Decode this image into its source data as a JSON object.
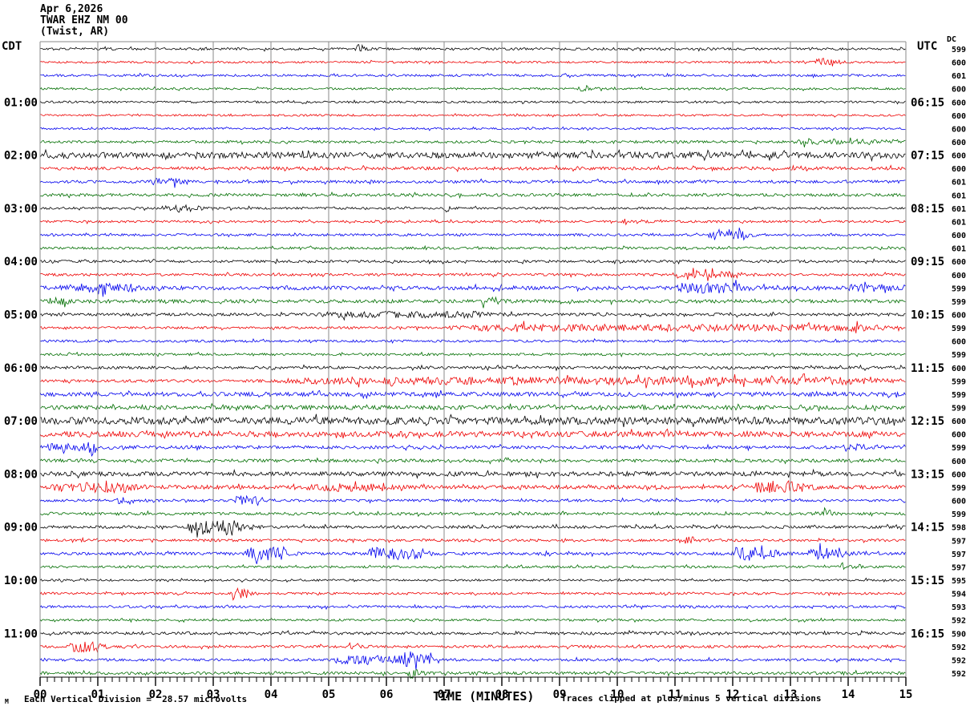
{
  "header": {
    "date": "Apr 6,2026",
    "station": "TWAR EHZ NM 00",
    "location": "(Twist, AR)"
  },
  "axes": {
    "left_tz": "CDT",
    "right_tz": "UTC",
    "dc_header": "DC"
  },
  "footer": {
    "corner_mark": "M",
    "vertical_division": "Each Vertical Division =  28.57 microvolts",
    "x_axis_title": "TIME (MINUTES)",
    "clip_note": "Traces clipped at plus/minus 5 vertical divisions"
  },
  "chart_data": {
    "type": "line",
    "subtype": "helicorder-seismogram",
    "title": "TWAR EHZ NM 00 (Twist, AR) Apr 6,2026",
    "xlabel": "TIME (MINUTES)",
    "x_range_minutes": [
      0,
      15
    ],
    "x_tick_labels": [
      "00",
      "01",
      "02",
      "03",
      "04",
      "05",
      "06",
      "07",
      "08",
      "09",
      "10",
      "11",
      "12",
      "13",
      "14",
      "15"
    ],
    "minor_ticks_per_minute": 8,
    "grid": true,
    "grid_color": "#8a8a8a",
    "palette": [
      "#000000",
      "#ee0000",
      "#0000ee",
      "#006e00"
    ],
    "palette_names": [
      "black",
      "red",
      "blue",
      "green"
    ],
    "rows_note": "48 quarter-hour trace rows, 00:00-11:45 CDT / 05:15-17:00 UTC; c=palette index, amp=background noise half-amplitude px, ev=[startMinute,durationMinutes,extraAmplitude] bursts",
    "rows": [
      {
        "cdt": "",
        "utc": "",
        "dc": 599,
        "c": 0,
        "amp": 1.5,
        "ev": [
          [
            5.45,
            0.15,
            5
          ]
        ]
      },
      {
        "cdt": "",
        "utc": "",
        "dc": 600,
        "c": 1,
        "amp": 1.3,
        "ev": [
          [
            13.35,
            0.4,
            4
          ]
        ]
      },
      {
        "cdt": "",
        "utc": "",
        "dc": 601,
        "c": 2,
        "amp": 1.5,
        "ev": []
      },
      {
        "cdt": "",
        "utc": "",
        "dc": 600,
        "c": 3,
        "amp": 1.3,
        "ev": [
          [
            9.3,
            0.2,
            3
          ]
        ]
      },
      {
        "cdt": "01:00",
        "utc": "06:15",
        "dc": 600,
        "c": 0,
        "amp": 1.3,
        "ev": []
      },
      {
        "cdt": "",
        "utc": "",
        "dc": 600,
        "c": 1,
        "amp": 1.2,
        "ev": []
      },
      {
        "cdt": "",
        "utc": "",
        "dc": 600,
        "c": 2,
        "amp": 1.3,
        "ev": []
      },
      {
        "cdt": "",
        "utc": "",
        "dc": 600,
        "c": 3,
        "amp": 1.6,
        "ev": [
          [
            13.0,
            2.0,
            2
          ]
        ]
      },
      {
        "cdt": "02:00",
        "utc": "07:15",
        "dc": 600,
        "c": 0,
        "amp": 3.8,
        "ev": []
      },
      {
        "cdt": "",
        "utc": "",
        "dc": 600,
        "c": 1,
        "amp": 2.0,
        "ev": []
      },
      {
        "cdt": "",
        "utc": "",
        "dc": 601,
        "c": 2,
        "amp": 1.8,
        "ev": [
          [
            1.9,
            0.6,
            2.5
          ]
        ]
      },
      {
        "cdt": "",
        "utc": "",
        "dc": 601,
        "c": 3,
        "amp": 1.8,
        "ev": []
      },
      {
        "cdt": "03:00",
        "utc": "08:15",
        "dc": 601,
        "c": 0,
        "amp": 1.4,
        "ev": [
          [
            2.1,
            0.7,
            3
          ],
          [
            6.95,
            0.15,
            3.5
          ]
        ]
      },
      {
        "cdt": "",
        "utc": "",
        "dc": 601,
        "c": 1,
        "amp": 1.4,
        "ev": [
          [
            10.1,
            0.35,
            2.5
          ]
        ]
      },
      {
        "cdt": "",
        "utc": "",
        "dc": 600,
        "c": 2,
        "amp": 1.5,
        "ev": [
          [
            11.55,
            0.75,
            6
          ]
        ]
      },
      {
        "cdt": "",
        "utc": "",
        "dc": 601,
        "c": 3,
        "amp": 1.5,
        "ev": []
      },
      {
        "cdt": "04:00",
        "utc": "09:15",
        "dc": 600,
        "c": 0,
        "amp": 1.6,
        "ev": []
      },
      {
        "cdt": "",
        "utc": "",
        "dc": 600,
        "c": 1,
        "amp": 1.6,
        "ev": [
          [
            10.9,
            1.3,
            3
          ]
        ]
      },
      {
        "cdt": "",
        "utc": "",
        "dc": 599,
        "c": 2,
        "amp": 2.4,
        "ev": [
          [
            0.6,
            1.1,
            3.5
          ],
          [
            11.0,
            1.3,
            4.5
          ],
          [
            13.8,
            1.0,
            2.5
          ]
        ]
      },
      {
        "cdt": "",
        "utc": "",
        "dc": 599,
        "c": 3,
        "amp": 2.2,
        "ev": [
          [
            0.15,
            0.35,
            3
          ],
          [
            7.6,
            0.4,
            3
          ]
        ]
      },
      {
        "cdt": "05:00",
        "utc": "10:15",
        "dc": 600,
        "c": 0,
        "amp": 1.8,
        "ev": [
          [
            4.7,
            3.2,
            2.5
          ]
        ]
      },
      {
        "cdt": "",
        "utc": "",
        "dc": 599,
        "c": 1,
        "amp": 1.5,
        "ev": [
          [
            7.0,
            8.0,
            3
          ]
        ]
      },
      {
        "cdt": "",
        "utc": "",
        "dc": 600,
        "c": 2,
        "amp": 1.5,
        "ev": []
      },
      {
        "cdt": "",
        "utc": "",
        "dc": 599,
        "c": 3,
        "amp": 1.5,
        "ev": []
      },
      {
        "cdt": "06:00",
        "utc": "11:15",
        "dc": 600,
        "c": 0,
        "amp": 1.8,
        "ev": []
      },
      {
        "cdt": "",
        "utc": "",
        "dc": 599,
        "c": 1,
        "amp": 1.8,
        "ev": [
          [
            4.0,
            11.0,
            3.2
          ]
        ]
      },
      {
        "cdt": "",
        "utc": "",
        "dc": 599,
        "c": 2,
        "amp": 2.6,
        "ev": []
      },
      {
        "cdt": "",
        "utc": "",
        "dc": 599,
        "c": 3,
        "amp": 2.6,
        "ev": []
      },
      {
        "cdt": "07:00",
        "utc": "12:15",
        "dc": 600,
        "c": 0,
        "amp": 4.5,
        "ev": []
      },
      {
        "cdt": "",
        "utc": "",
        "dc": 600,
        "c": 1,
        "amp": 3.4,
        "ev": []
      },
      {
        "cdt": "",
        "utc": "",
        "dc": 599,
        "c": 2,
        "amp": 2.0,
        "ev": [
          [
            0.0,
            1.0,
            3
          ],
          [
            0.82,
            0.18,
            6
          ],
          [
            13.9,
            0.4,
            3
          ]
        ]
      },
      {
        "cdt": "",
        "utc": "",
        "dc": 600,
        "c": 3,
        "amp": 2.0,
        "ev": []
      },
      {
        "cdt": "08:00",
        "utc": "13:15",
        "dc": 600,
        "c": 0,
        "amp": 2.8,
        "ev": []
      },
      {
        "cdt": "",
        "utc": "",
        "dc": 599,
        "c": 1,
        "amp": 2.4,
        "ev": [
          [
            0.2,
            1.5,
            4.5
          ],
          [
            4.6,
            1.5,
            3
          ],
          [
            12.35,
            0.9,
            6
          ]
        ]
      },
      {
        "cdt": "",
        "utc": "",
        "dc": 600,
        "c": 2,
        "amp": 1.6,
        "ev": [
          [
            1.3,
            0.35,
            3
          ],
          [
            3.35,
            0.55,
            5
          ]
        ]
      },
      {
        "cdt": "",
        "utc": "",
        "dc": 599,
        "c": 3,
        "amp": 1.8,
        "ev": [
          [
            13.4,
            0.3,
            3.5
          ]
        ]
      },
      {
        "cdt": "09:00",
        "utc": "14:15",
        "dc": 598,
        "c": 0,
        "amp": 1.8,
        "ev": [
          [
            2.55,
            1.0,
            8
          ]
        ]
      },
      {
        "cdt": "",
        "utc": "",
        "dc": 597,
        "c": 1,
        "amp": 1.6,
        "ev": [
          [
            11.15,
            0.2,
            4
          ]
        ]
      },
      {
        "cdt": "",
        "utc": "",
        "dc": 597,
        "c": 2,
        "amp": 1.8,
        "ev": [
          [
            3.55,
            0.75,
            7
          ],
          [
            5.65,
            1.05,
            6
          ],
          [
            11.95,
            0.85,
            7
          ],
          [
            13.3,
            0.65,
            6
          ]
        ]
      },
      {
        "cdt": "",
        "utc": "",
        "dc": 597,
        "c": 3,
        "amp": 1.5,
        "ev": [
          [
            13.85,
            0.15,
            4
          ]
        ]
      },
      {
        "cdt": "10:00",
        "utc": "15:15",
        "dc": 595,
        "c": 0,
        "amp": 1.3,
        "ev": []
      },
      {
        "cdt": "",
        "utc": "",
        "dc": 594,
        "c": 1,
        "amp": 1.4,
        "ev": [
          [
            3.3,
            0.35,
            5
          ]
        ]
      },
      {
        "cdt": "",
        "utc": "",
        "dc": 593,
        "c": 2,
        "amp": 1.5,
        "ev": []
      },
      {
        "cdt": "",
        "utc": "",
        "dc": 592,
        "c": 3,
        "amp": 1.4,
        "ev": []
      },
      {
        "cdt": "11:00",
        "utc": "16:15",
        "dc": 590,
        "c": 0,
        "amp": 1.8,
        "ev": []
      },
      {
        "cdt": "",
        "utc": "",
        "dc": 592,
        "c": 1,
        "amp": 1.6,
        "ev": [
          [
            0.5,
            0.6,
            5
          ],
          [
            5.3,
            0.2,
            4
          ]
        ]
      },
      {
        "cdt": "",
        "utc": "",
        "dc": 592,
        "c": 2,
        "amp": 1.6,
        "ev": [
          [
            5.0,
            1.9,
            4
          ],
          [
            6.28,
            0.28,
            9
          ]
        ]
      },
      {
        "cdt": "",
        "utc": "",
        "dc": 592,
        "c": 3,
        "amp": 1.8,
        "ev": [
          [
            6.4,
            0.15,
            6
          ]
        ]
      }
    ]
  }
}
